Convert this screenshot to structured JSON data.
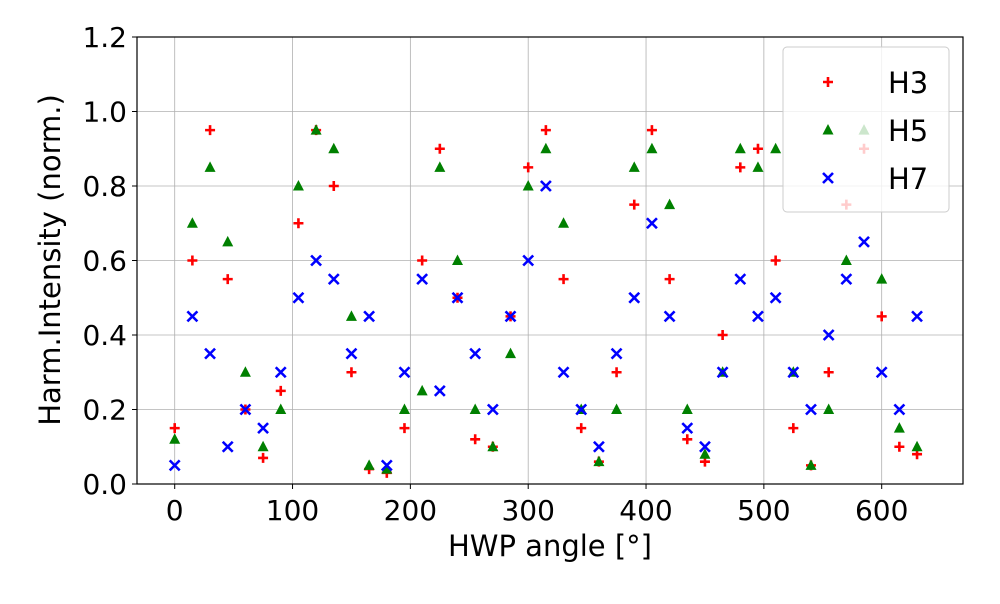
{
  "chart_data": {
    "type": "scatter",
    "xlabel": "HWP angle [°]",
    "ylabel": "Harm.Intensity (norm.)",
    "xlim": [
      -32,
      669
    ],
    "ylim": [
      0,
      1.2
    ],
    "xticks": [
      0,
      100,
      200,
      300,
      400,
      500,
      600
    ],
    "yticks": [
      {
        "value": 0,
        "label": "0.0"
      },
      0.2,
      0.4,
      0.6,
      0.8,
      {
        "value": 1,
        "label": "1.0"
      },
      1.2
    ],
    "grid": true,
    "legend": "upper right",
    "x": [
      0,
      15,
      30,
      45,
      60,
      75,
      90,
      105,
      120,
      135,
      150,
      165,
      180,
      195,
      210,
      225,
      240,
      255,
      270,
      285,
      300,
      315,
      330,
      345,
      360,
      375,
      390,
      405,
      420,
      435,
      450,
      465,
      480,
      495,
      510,
      525,
      540,
      555,
      570,
      585,
      600,
      615,
      630
    ],
    "series": [
      {
        "name": "H3",
        "color": "#ff0000",
        "marker": "plus",
        "values": [
          0.15,
          0.6,
          0.95,
          0.55,
          0.2,
          0.07,
          0.25,
          0.7,
          0.95,
          0.8,
          0.3,
          0.04,
          0.03,
          0.15,
          0.6,
          0.9,
          0.5,
          0.12,
          0.1,
          0.45,
          0.85,
          0.95,
          0.55,
          0.15,
          0.06,
          0.3,
          0.75,
          0.95,
          0.55,
          0.12,
          0.06,
          0.4,
          0.85,
          0.9,
          0.6,
          0.15,
          0.05,
          0.3,
          0.75,
          0.9,
          0.45,
          0.1,
          0.08
        ]
      },
      {
        "name": "H5",
        "color": "#008000",
        "marker": "triangle",
        "values": [
          0.12,
          0.7,
          0.85,
          0.65,
          0.3,
          0.1,
          0.2,
          0.8,
          0.95,
          0.9,
          0.45,
          0.05,
          0.04,
          0.2,
          0.25,
          0.85,
          0.6,
          0.2,
          0.1,
          0.35,
          0.8,
          0.9,
          0.7,
          0.2,
          0.06,
          0.2,
          0.85,
          0.9,
          0.75,
          0.2,
          0.08,
          0.3,
          0.9,
          0.85,
          0.9,
          0.3,
          0.05,
          0.2,
          0.6,
          0.95,
          0.55,
          0.15,
          0.1
        ]
      },
      {
        "name": "H7",
        "color": "#0000ff",
        "marker": "x",
        "values": [
          0.05,
          0.45,
          0.35,
          0.1,
          0.2,
          0.15,
          0.3,
          0.5,
          0.6,
          0.55,
          0.35,
          0.45,
          0.05,
          0.3,
          0.55,
          0.25,
          0.5,
          0.35,
          0.2,
          0.45,
          0.6,
          0.8,
          0.3,
          0.2,
          0.1,
          0.35,
          0.5,
          0.7,
          0.45,
          0.15,
          0.1,
          0.3,
          0.55,
          0.45,
          0.5,
          0.3,
          0.2,
          0.4,
          0.55,
          0.65,
          0.3,
          0.2,
          0.45
        ]
      }
    ]
  }
}
